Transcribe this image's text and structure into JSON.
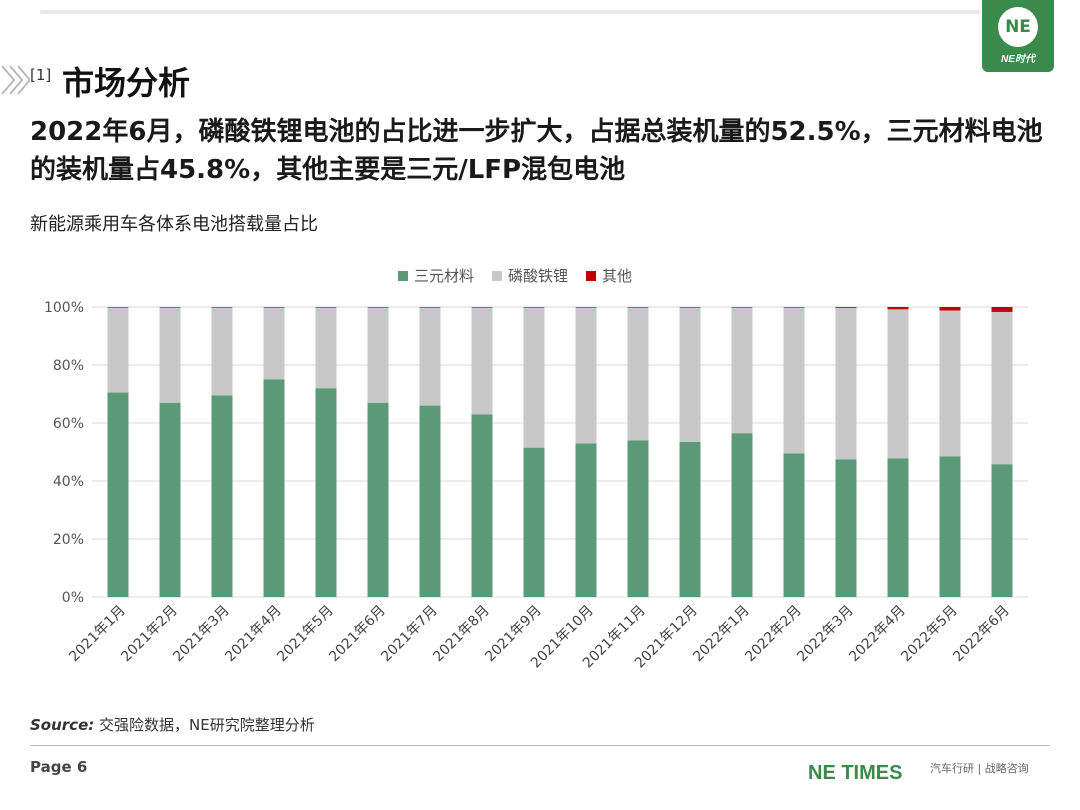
{
  "header": {
    "section_mark": "[1]",
    "section_title": "市场分析",
    "headline": "2022年6月，磷酸铁锂电池的占比进一步扩大，占据总装机量的52.5%，三元材料电池的装机量占45.8%，其他主要是三元/LFP混包电池"
  },
  "logo": {
    "circle_text": "NE",
    "text": "NE时代"
  },
  "chart_data": {
    "type": "bar",
    "stacked": true,
    "title": "新能源乘用车各体系电池搭载量占比",
    "categories": [
      "2021年1月",
      "2021年2月",
      "2021年3月",
      "2021年4月",
      "2021年5月",
      "2021年6月",
      "2021年7月",
      "2021年8月",
      "2021年9月",
      "2021年10月",
      "2021年11月",
      "2021年12月",
      "2022年1月",
      "2022年2月",
      "2022年3月",
      "2022年4月",
      "2022年5月",
      "2022年6月"
    ],
    "series": [
      {
        "name": "三元材料",
        "color": "#5a9a79",
        "values": [
          70.5,
          67,
          69.5,
          75,
          72,
          67,
          66,
          63,
          51.5,
          53,
          54,
          53.5,
          56.5,
          49.5,
          47.5,
          47.8,
          48.5,
          45.8
        ]
      },
      {
        "name": "磷酸铁锂",
        "color": "#c8c8c8",
        "values": [
          29.3,
          32.8,
          30.3,
          24.8,
          27.8,
          32.8,
          33.8,
          36.8,
          48.3,
          46.8,
          45.8,
          46.3,
          43.3,
          50.3,
          52.2,
          51.4,
          50.3,
          52.5
        ]
      },
      {
        "name": "其他",
        "color": "#c00000",
        "values": [
          0.2,
          0.2,
          0.2,
          0.2,
          0.2,
          0.2,
          0.2,
          0.2,
          0.2,
          0.2,
          0.2,
          0.2,
          0.2,
          0.2,
          0.3,
          0.8,
          1.2,
          1.7
        ]
      }
    ],
    "ylim": [
      0,
      100
    ],
    "yticks": [
      "0%",
      "20%",
      "40%",
      "60%",
      "80%",
      "100%"
    ],
    "legend_position": "top-center",
    "grid": true
  },
  "source": {
    "label": "Source:",
    "text": "交强险数据，NE研究院整理分析"
  },
  "footer": {
    "page": "Page 6",
    "brand": "NE TIMES",
    "tagline": "汽车行研 | 战略咨询"
  }
}
